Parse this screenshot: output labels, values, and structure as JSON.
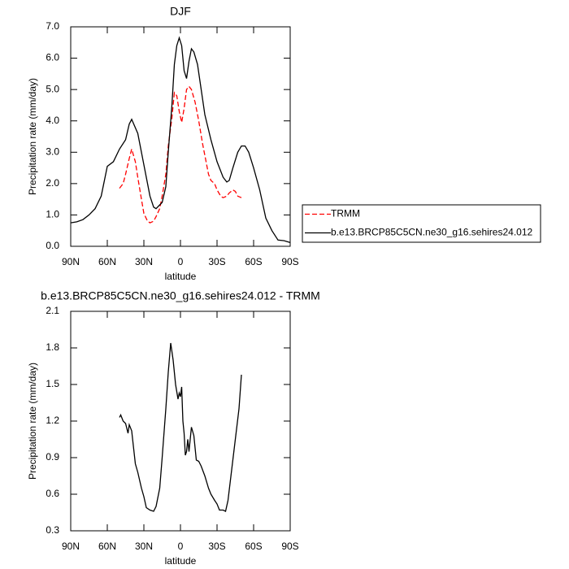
{
  "chart_data": [
    {
      "type": "line",
      "title": "DJF",
      "xlabel": "latitude",
      "ylabel": "Precipitation rate (mm/day)",
      "xlim": [
        90,
        -90
      ],
      "xticks": [
        {
          "value": 90,
          "label": "90N"
        },
        {
          "value": 60,
          "label": "60N"
        },
        {
          "value": 30,
          "label": "30N"
        },
        0,
        {
          "value": -30,
          "label": "30S"
        },
        {
          "value": -60,
          "label": "60S"
        },
        {
          "value": -90,
          "label": "90S"
        }
      ],
      "ylim": [
        0,
        7
      ],
      "yticks": [
        {
          "value": 0,
          "label": "0.0"
        },
        {
          "value": 1,
          "label": "1.0"
        },
        {
          "value": 2,
          "label": "2.0"
        },
        {
          "value": 3,
          "label": "3.0"
        },
        {
          "value": 4,
          "label": "4.0"
        },
        {
          "value": 5,
          "label": "5.0"
        },
        {
          "value": 6,
          "label": "6.0"
        },
        {
          "value": 7,
          "label": "7.0"
        }
      ],
      "legend_position": "right",
      "series": [
        {
          "name": "TRMM",
          "color": "#ff0000",
          "dash": true,
          "x": [
            50,
            47,
            45,
            42,
            40,
            37,
            35,
            32,
            30,
            27,
            25,
            22,
            20,
            17,
            15,
            12,
            10,
            7,
            5,
            3,
            1,
            -1,
            -3,
            -5,
            -7,
            -9,
            -12,
            -15,
            -18,
            -20,
            -23,
            -25,
            -28,
            -30,
            -33,
            -35,
            -38,
            -40,
            -43,
            -45,
            -47,
            -50
          ],
          "values": [
            1.85,
            2.0,
            2.3,
            2.8,
            3.1,
            2.7,
            2.2,
            1.5,
            1.05,
            0.8,
            0.75,
            0.8,
            0.95,
            1.2,
            1.6,
            2.3,
            3.2,
            4.1,
            4.9,
            4.8,
            4.3,
            3.95,
            4.4,
            5.0,
            5.1,
            5.0,
            4.6,
            4.0,
            3.3,
            2.9,
            2.3,
            2.1,
            2.0,
            1.8,
            1.6,
            1.55,
            1.6,
            1.7,
            1.8,
            1.75,
            1.6,
            1.55
          ]
        },
        {
          "name": "b.e13.BRCP85C5CN.ne30_g16.sehires24.012",
          "color": "#000000",
          "dash": false,
          "x": [
            90,
            85,
            80,
            75,
            70,
            65,
            60,
            55,
            50,
            45,
            42,
            40,
            35,
            30,
            25,
            22,
            20,
            15,
            12,
            10,
            7,
            5,
            3,
            1,
            -1,
            -3,
            -5,
            -7,
            -9,
            -11,
            -14,
            -17,
            -20,
            -25,
            -30,
            -35,
            -38,
            -40,
            -43,
            -47,
            -50,
            -53,
            -56,
            -60,
            -65,
            -70,
            -75,
            -80,
            -85,
            -90
          ],
          "values": [
            0.75,
            0.78,
            0.85,
            1.0,
            1.2,
            1.6,
            2.55,
            2.7,
            3.1,
            3.4,
            3.9,
            4.05,
            3.6,
            2.6,
            1.6,
            1.25,
            1.2,
            1.4,
            1.9,
            3.0,
            4.5,
            5.8,
            6.4,
            6.65,
            6.4,
            5.6,
            5.35,
            5.9,
            6.3,
            6.2,
            5.8,
            5.0,
            4.2,
            3.4,
            2.7,
            2.2,
            2.05,
            2.1,
            2.5,
            3.0,
            3.2,
            3.2,
            3.0,
            2.5,
            1.8,
            0.9,
            0.5,
            0.2,
            0.18,
            0.12
          ]
        }
      ]
    },
    {
      "type": "line",
      "title": "b.e13.BRCP85C5CN.ne30_g16.sehires24.012 - TRMM",
      "xlabel": "latitude",
      "ylabel": "Precipitation rate (mm/day)",
      "xlim": [
        90,
        -90
      ],
      "xticks": [
        {
          "value": 90,
          "label": "90N"
        },
        {
          "value": 60,
          "label": "60N"
        },
        {
          "value": 30,
          "label": "30N"
        },
        0,
        {
          "value": -30,
          "label": "30S"
        },
        {
          "value": -60,
          "label": "60S"
        },
        {
          "value": -90,
          "label": "90S"
        }
      ],
      "ylim": [
        0.3,
        2.1
      ],
      "yticks": [
        0.3,
        0.6,
        0.9,
        1.2,
        1.5,
        1.8,
        2.1
      ],
      "color": "#000000",
      "x": [
        50,
        49,
        47,
        45,
        43,
        42,
        40,
        37,
        35,
        32,
        30,
        28,
        25,
        22,
        20,
        17,
        15,
        12,
        10,
        8,
        6,
        4,
        2,
        1,
        0,
        -1,
        -2,
        -3,
        -4,
        -5,
        -6,
        -7,
        -9,
        -11,
        -13,
        -15,
        -17,
        -20,
        -23,
        -25,
        -28,
        -30,
        -32,
        -35,
        -37,
        -39,
        -42,
        -45,
        -48,
        -50
      ],
      "values": [
        1.23,
        1.25,
        1.2,
        1.18,
        1.1,
        1.17,
        1.12,
        0.85,
        0.78,
        0.65,
        0.58,
        0.49,
        0.47,
        0.46,
        0.5,
        0.65,
        0.9,
        1.3,
        1.6,
        1.84,
        1.7,
        1.5,
        1.38,
        1.43,
        1.4,
        1.48,
        1.2,
        1.1,
        0.92,
        0.95,
        1.05,
        0.95,
        1.15,
        1.08,
        0.88,
        0.87,
        0.83,
        0.75,
        0.65,
        0.6,
        0.55,
        0.52,
        0.47,
        0.47,
        0.46,
        0.55,
        0.8,
        1.05,
        1.3,
        1.58
      ]
    }
  ]
}
